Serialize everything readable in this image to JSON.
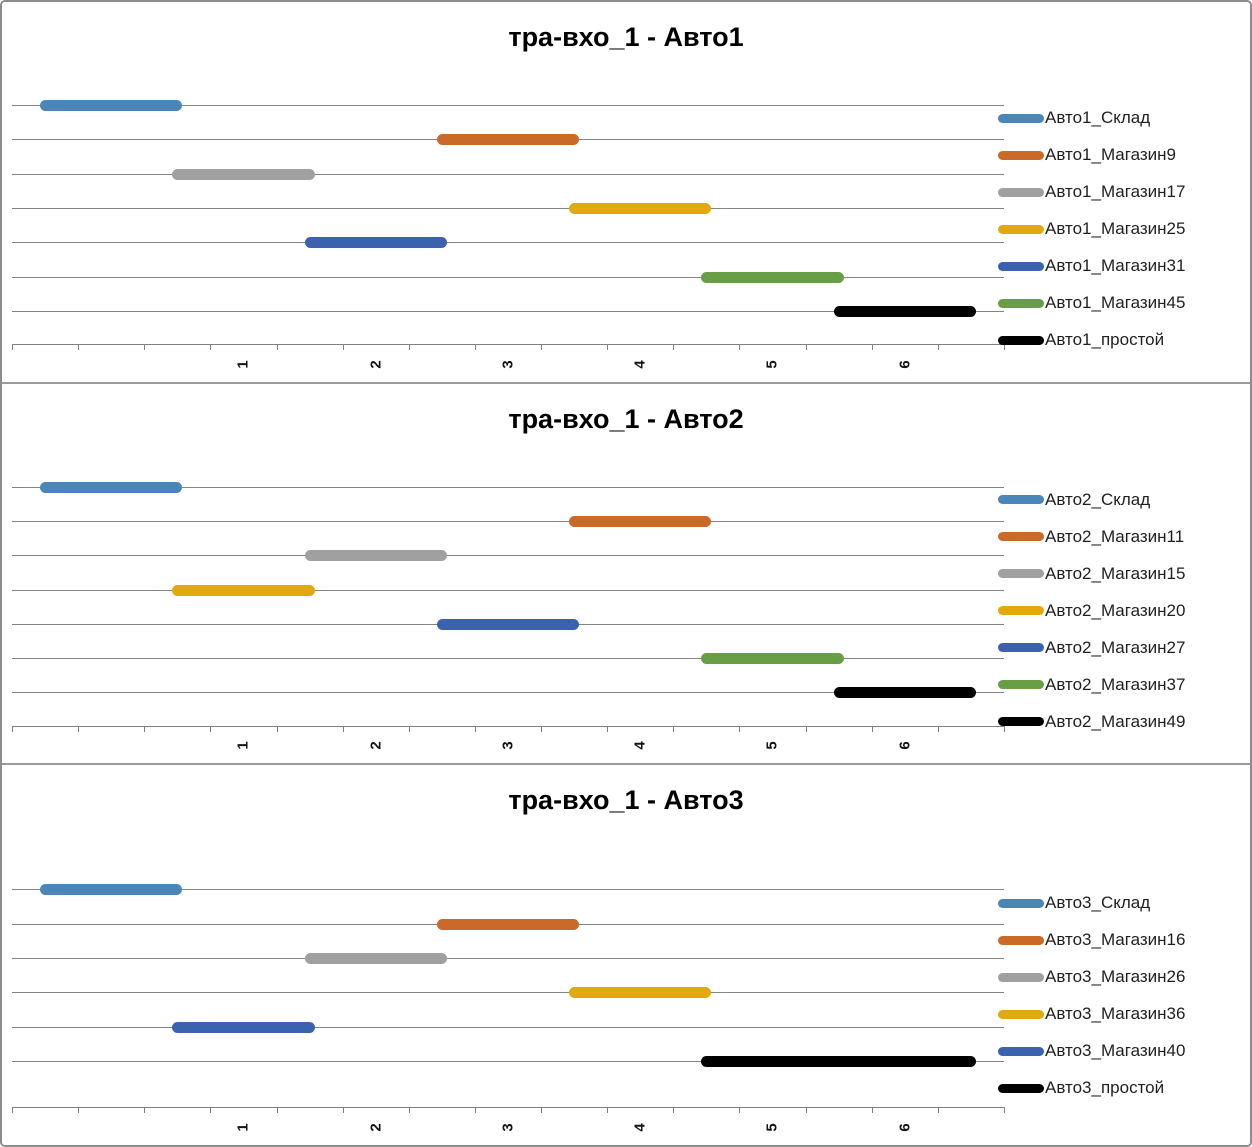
{
  "page": {
    "background": "#ffffff",
    "border_color": "#8c8c8c",
    "gridline_color": "#848484",
    "axis_color": "#808080"
  },
  "chart_data": [
    {
      "type": "line",
      "subtype": "gantt-schedule",
      "title": "тра-вхо_1 - Авто1",
      "x_ticks": [
        "1",
        "2",
        "3",
        "4",
        "5",
        "6"
      ],
      "x_range": [
        -0.75,
        6.75
      ],
      "grid": true,
      "legend_position": "right",
      "series": [
        {
          "name": "Авто1_Склад",
          "color": "#4a86b8",
          "start": -0.5,
          "end": 0.5
        },
        {
          "name": "Авто1_Магазин9",
          "color": "#c96a28",
          "start": 2.5,
          "end": 3.5
        },
        {
          "name": "Авто1_Магазин17",
          "color": "#a0a0a0",
          "start": 0.5,
          "end": 1.5
        },
        {
          "name": "Авто1_Магазин25",
          "color": "#e2a90e",
          "start": 3.5,
          "end": 4.5
        },
        {
          "name": "Авто1_Магазин31",
          "color": "#3a62ae",
          "start": 1.5,
          "end": 2.5
        },
        {
          "name": "Авто1_Магазин45",
          "color": "#689e45",
          "start": 4.5,
          "end": 5.5
        },
        {
          "name": "Авто1_простой",
          "color": "#000000",
          "start": 5.5,
          "end": 6.5
        }
      ]
    },
    {
      "type": "line",
      "subtype": "gantt-schedule",
      "title": "тра-вхо_1 - Авто2",
      "x_ticks": [
        "1",
        "2",
        "3",
        "4",
        "5",
        "6"
      ],
      "x_range": [
        -0.75,
        6.75
      ],
      "grid": true,
      "legend_position": "right",
      "series": [
        {
          "name": "Авто2_Склад",
          "color": "#4a86b8",
          "start": -0.5,
          "end": 0.5
        },
        {
          "name": "Авто2_Магазин11",
          "color": "#c96a28",
          "start": 3.5,
          "end": 4.5
        },
        {
          "name": "Авто2_Магазин15",
          "color": "#a0a0a0",
          "start": 1.5,
          "end": 2.5
        },
        {
          "name": "Авто2_Магазин20",
          "color": "#e2a90e",
          "start": 0.5,
          "end": 1.5
        },
        {
          "name": "Авто2_Магазин27",
          "color": "#3a62ae",
          "start": 2.5,
          "end": 3.5
        },
        {
          "name": "Авто2_Магазин37",
          "color": "#689e45",
          "start": 4.5,
          "end": 5.5
        },
        {
          "name": "Авто2_Магазин49",
          "color": "#000000",
          "start": 5.5,
          "end": 6.5
        }
      ]
    },
    {
      "type": "line",
      "subtype": "gantt-schedule",
      "title": "тра-вхо_1 - Авто3",
      "x_ticks": [
        "1",
        "2",
        "3",
        "4",
        "5",
        "6"
      ],
      "x_range": [
        -0.75,
        6.75
      ],
      "grid": true,
      "legend_position": "right",
      "series": [
        {
          "name": "Авто3_Склад",
          "color": "#4a86b8",
          "start": -0.5,
          "end": 0.5
        },
        {
          "name": "Авто3_Магазин16",
          "color": "#c96a28",
          "start": 2.5,
          "end": 3.5
        },
        {
          "name": "Авто3_Магазин26",
          "color": "#a0a0a0",
          "start": 1.5,
          "end": 2.5
        },
        {
          "name": "Авто3_Магазин36",
          "color": "#e2a90e",
          "start": 3.5,
          "end": 4.5
        },
        {
          "name": "Авто3_Магазин40",
          "color": "#3a62ae",
          "start": 0.5,
          "end": 1.5
        },
        {
          "name": "Авто3_простой",
          "color": "#000000",
          "start": 4.5,
          "end": 6.5
        }
      ]
    }
  ]
}
